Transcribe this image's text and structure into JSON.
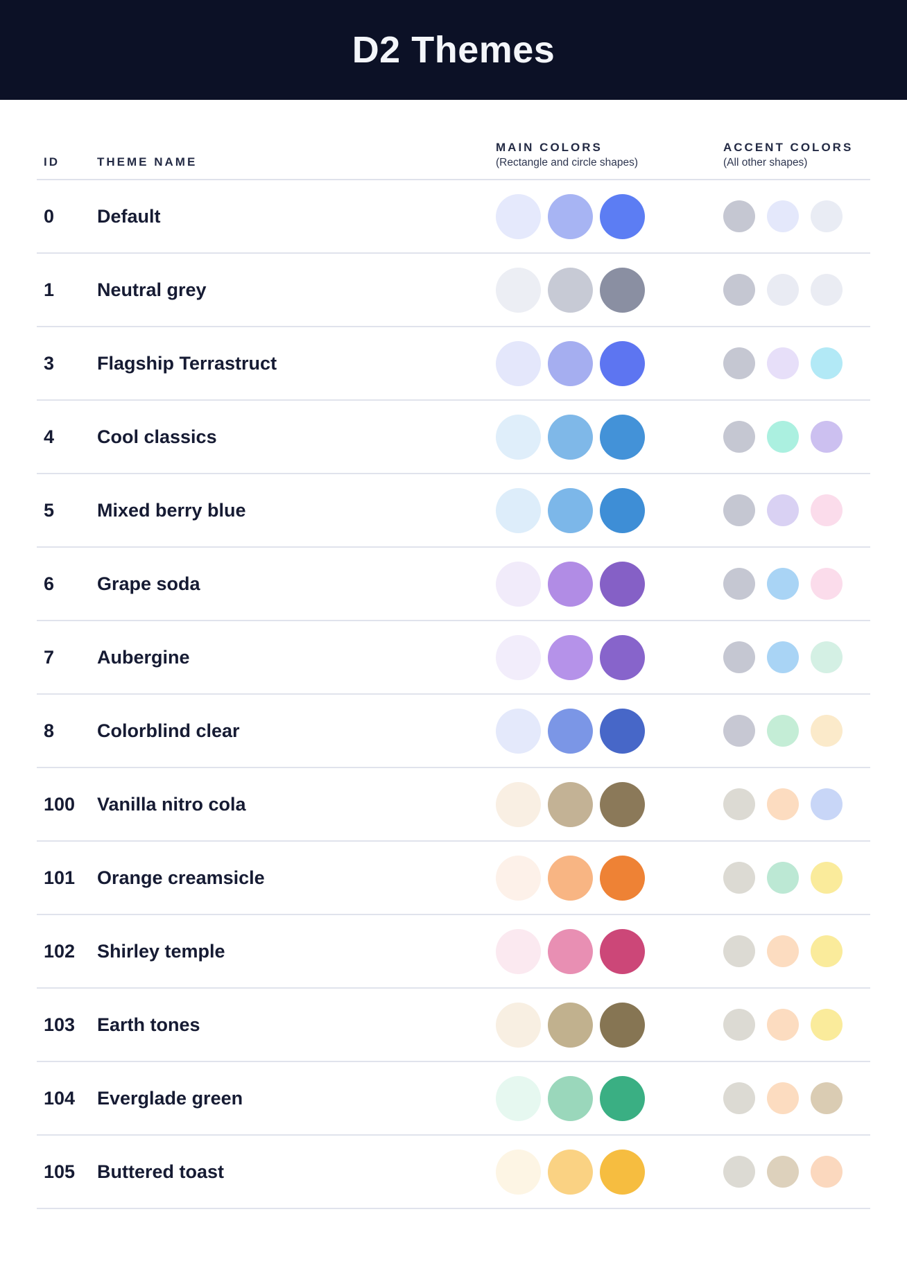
{
  "page": {
    "title": "D2 Themes",
    "header_bg": "#0C1126",
    "separator_color": "#E0E3EC"
  },
  "table": {
    "columns": {
      "id_label": "ID",
      "name_label": "THEME NAME",
      "main_label": "MAIN COLORS",
      "main_sub": "(Rectangle and circle shapes)",
      "accent_label": "ACCENT COLORS",
      "accent_sub": "(All other shapes)"
    },
    "themes": [
      {
        "id": "0",
        "name": "Default",
        "main_colors": [
          "#E5E9FC",
          "#A7B4F3",
          "#5C7DF3"
        ],
        "accent_colors": [
          "#C5C7D2",
          "#E4E8FB",
          "#E9ECF4"
        ]
      },
      {
        "id": "1",
        "name": "Neutral grey",
        "main_colors": [
          "#ECEEF4",
          "#C7CAD5",
          "#8A8FA2"
        ],
        "accent_colors": [
          "#C5C7D2",
          "#E9EBF3",
          "#EAECF3"
        ]
      },
      {
        "id": "3",
        "name": "Flagship Terrastruct",
        "main_colors": [
          "#E4E7FB",
          "#A5AEF0",
          "#5D75F1"
        ],
        "accent_colors": [
          "#C5C7D2",
          "#E7DFF9",
          "#B2E9F6"
        ]
      },
      {
        "id": "4",
        "name": "Cool classics",
        "main_colors": [
          "#DFEEFA",
          "#7FB8E8",
          "#4392D8"
        ],
        "accent_colors": [
          "#C5C7D2",
          "#ABF0E0",
          "#CCC0F0"
        ]
      },
      {
        "id": "5",
        "name": "Mixed berry blue",
        "main_colors": [
          "#DDEDFA",
          "#7CB7E9",
          "#3E8ED6"
        ],
        "accent_colors": [
          "#C5C7D2",
          "#D9D1F3",
          "#FBDCEB"
        ]
      },
      {
        "id": "6",
        "name": "Grape soda",
        "main_colors": [
          "#F1EBFA",
          "#B18CE5",
          "#8560C6"
        ],
        "accent_colors": [
          "#C5C7D2",
          "#A9D4F5",
          "#FBDCEB"
        ]
      },
      {
        "id": "7",
        "name": "Aubergine",
        "main_colors": [
          "#F2EDFB",
          "#B592E9",
          "#8764CB"
        ],
        "accent_colors": [
          "#C5C7D2",
          "#A9D4F5",
          "#D4F0E4"
        ]
      },
      {
        "id": "8",
        "name": "Colorblind clear",
        "main_colors": [
          "#E4E9FB",
          "#7B96E6",
          "#4767C8"
        ],
        "accent_colors": [
          "#C7C8D3",
          "#C4EDD6",
          "#FBEACA"
        ]
      },
      {
        "id": "100",
        "name": "Vanilla nitro cola",
        "main_colors": [
          "#F9EFE3",
          "#C3B295",
          "#8B7959"
        ],
        "accent_colors": [
          "#DCDAD3",
          "#FCDCC0",
          "#C8D6F7"
        ]
      },
      {
        "id": "101",
        "name": "Orange creamsicle",
        "main_colors": [
          "#FDF1E9",
          "#F8B583",
          "#EE8235"
        ],
        "accent_colors": [
          "#DCDAD3",
          "#BCE8D4",
          "#FAEB9B"
        ]
      },
      {
        "id": "102",
        "name": "Shirley temple",
        "main_colors": [
          "#FBE9F0",
          "#E88FB3",
          "#CC4778"
        ],
        "accent_colors": [
          "#DCDAD3",
          "#FCDCC0",
          "#FAEB9B"
        ]
      },
      {
        "id": "103",
        "name": "Earth tones",
        "main_colors": [
          "#F8EFE2",
          "#C1B18E",
          "#867553"
        ],
        "accent_colors": [
          "#DCDAD3",
          "#FCDCC0",
          "#FAEB9B"
        ]
      },
      {
        "id": "104",
        "name": "Everglade green",
        "main_colors": [
          "#E6F8F0",
          "#9AD7BB",
          "#3AAF83"
        ],
        "accent_colors": [
          "#DCDAD3",
          "#FCDCC0",
          "#DACCB3"
        ]
      },
      {
        "id": "105",
        "name": "Buttered toast",
        "main_colors": [
          "#FDF5E4",
          "#FAD283",
          "#F6BD40"
        ],
        "accent_colors": [
          "#DCDAD3",
          "#DDD1BC",
          "#FBD8BE"
        ]
      }
    ]
  }
}
